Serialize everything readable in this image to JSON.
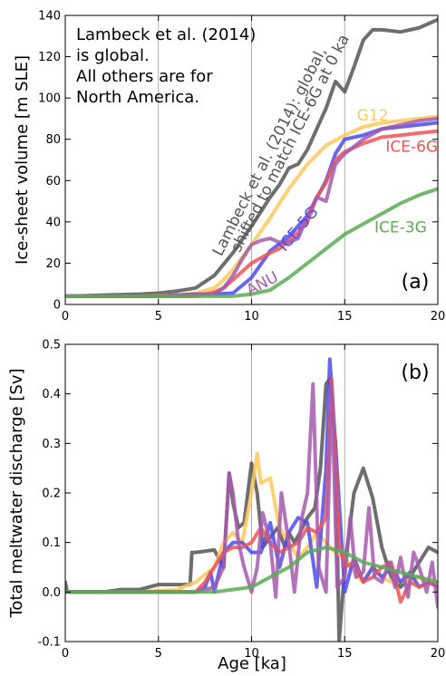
{
  "figure": {
    "x_label": "Age [ka]"
  },
  "chart_data": [
    {
      "type": "line",
      "panel_label": "(a)",
      "ylabel": "Ice-sheet volume [m SLE]",
      "xlim": [
        0,
        20
      ],
      "ylim": [
        0,
        140
      ],
      "x_ticks": [
        0,
        5,
        10,
        15,
        20
      ],
      "y_ticks": [
        0,
        20,
        40,
        60,
        80,
        100,
        120,
        140
      ],
      "grid": "vertical lines at x = 5, 10, 15",
      "note_lines": [
        "Lambeck et al. (2014)",
        "is global.",
        "All others are for",
        "North America."
      ],
      "series": [
        {
          "name": "Lambeck et al. (2014): global, shifted to match ICE-6G at 0 ka",
          "color": "#555555",
          "x": [
            0,
            2,
            4,
            5,
            6,
            7,
            8,
            9,
            10,
            10.5,
            11,
            11.5,
            12,
            12.5,
            13,
            13.5,
            14,
            14.5,
            15,
            15.5,
            16,
            16.5,
            17,
            18,
            19,
            20
          ],
          "y": [
            4,
            4.5,
            5,
            5.5,
            6.5,
            8,
            14,
            25,
            38,
            45,
            52,
            58,
            66,
            68,
            75,
            85,
            95,
            108,
            103,
            115,
            128,
            133,
            133,
            132,
            134,
            138
          ]
        },
        {
          "name": "G12",
          "color": "#fdc85a",
          "x": [
            0,
            4,
            6,
            7,
            8,
            8.5,
            9,
            10,
            11,
            12,
            13,
            14,
            15,
            16,
            17,
            18,
            19,
            20
          ],
          "y": [
            4,
            4,
            4.5,
            5.5,
            8,
            12,
            17,
            29,
            42,
            56,
            68,
            77,
            82,
            86,
            88,
            89,
            90,
            91
          ]
        },
        {
          "name": "ICE-5G",
          "color": "#4b4bef",
          "x": [
            0,
            5,
            7,
            8,
            9,
            10,
            11,
            12,
            13,
            14,
            14.5,
            15,
            16,
            17,
            18,
            19,
            20
          ],
          "y": [
            4,
            4,
            5,
            5,
            5.5,
            13,
            26,
            33,
            43,
            60,
            73,
            80,
            82,
            85,
            86,
            87,
            88
          ]
        },
        {
          "name": "ICE-6G",
          "color": "#f05555",
          "x": [
            0,
            5,
            7,
            8,
            8.5,
            9,
            10,
            11,
            11.5,
            12,
            12.5,
            13,
            13.5,
            14,
            14.5,
            15,
            16,
            17,
            18,
            19,
            20
          ],
          "y": [
            4,
            4,
            4,
            6,
            8,
            12,
            20,
            25,
            27,
            31,
            35,
            40,
            52,
            59,
            70,
            74,
            78,
            81,
            82,
            83,
            84
          ]
        },
        {
          "name": "ANU",
          "color": "#a45aae",
          "x": [
            0,
            5,
            7,
            8,
            8.5,
            9,
            9.5,
            10,
            10.5,
            11,
            11.5,
            12,
            12.5,
            13,
            13.5,
            14,
            14.5,
            15,
            16,
            17,
            18,
            19,
            20
          ],
          "y": [
            4,
            4,
            5,
            5,
            8,
            14,
            22,
            29,
            31,
            32,
            30,
            30,
            32,
            43,
            52,
            50,
            68,
            73,
            80,
            85,
            87,
            89,
            90
          ]
        },
        {
          "name": "ICE-3G",
          "color": "#5aab52",
          "x": [
            0,
            5,
            7,
            8,
            9,
            10,
            11,
            12,
            13,
            14,
            15,
            16,
            17,
            18,
            19,
            20
          ],
          "y": [
            4,
            4,
            4,
            4,
            4,
            5,
            7,
            13,
            20,
            27,
            34,
            39,
            44,
            49,
            53,
            56
          ]
        }
      ],
      "curve_labels": [
        {
          "text": "Lambeck et al. (2014): global,",
          "color": "#555555",
          "x": 11.2,
          "y": 73,
          "rotate": -63
        },
        {
          "text": "shifted to match ICE-6G at 0 ka",
          "color": "#555555",
          "x": 12.3,
          "y": 77,
          "rotate": -63
        },
        {
          "text": "G12",
          "color": "#fdc85a",
          "x": 16.5,
          "y": 89
        },
        {
          "text": "ICE-6G",
          "color": "#f05555",
          "x": 18.6,
          "y": 74
        },
        {
          "text": "ICE-5G",
          "color": "#4b4bef",
          "x": 12.7,
          "y": 35,
          "rotate": -50
        },
        {
          "text": "ICE-3G",
          "color": "#5aab52",
          "x": 18.0,
          "y": 35
        },
        {
          "text": "ANU",
          "color": "#a45aae",
          "x": 10.7,
          "y": 8,
          "rotate": -28
        }
      ]
    },
    {
      "type": "line",
      "panel_label": "(b)",
      "ylabel": "Total meltwater discharge [Sv]",
      "xlim": [
        0,
        20
      ],
      "ylim": [
        -0.1,
        0.5
      ],
      "x_ticks": [
        0,
        5,
        10,
        15,
        20
      ],
      "y_ticks": [
        -0.1,
        0.0,
        0.1,
        0.2,
        0.3,
        0.4,
        0.5
      ],
      "grid": "vertical lines at x = 5, 10, 15",
      "series": [
        {
          "name": "Lambeck et al. (2014)",
          "color": "#555555",
          "x": [
            0,
            0.1,
            0.2,
            2,
            3,
            4,
            5,
            6,
            6.7,
            6.8,
            7,
            8,
            8.5,
            8.8,
            9,
            9.3,
            9.6,
            9.8,
            10,
            10.3,
            10.6,
            11,
            11.4,
            11.8,
            12,
            12.3,
            12.6,
            13,
            13.4,
            13.7,
            14,
            14.2,
            14.5,
            14.7,
            15,
            15.5,
            16,
            16.5,
            17,
            17.5,
            18,
            18.5,
            19,
            19.5,
            20
          ],
          "y": [
            0.02,
            0.0,
            0.0,
            0.0,
            0.005,
            0.005,
            0.015,
            0.015,
            0.015,
            0.08,
            0.08,
            0.085,
            0.05,
            0.24,
            0.18,
            0.13,
            0.14,
            0.2,
            0.26,
            0.2,
            0.09,
            0.11,
            0.13,
            0.09,
            0.12,
            0.1,
            0.12,
            0.15,
            0.17,
            0.25,
            0.42,
            0.43,
            0.3,
            -0.1,
            0.05,
            0.2,
            0.25,
            0.19,
            0.09,
            0.03,
            0.01,
            0.03,
            0.06,
            0.09,
            0.08
          ]
        },
        {
          "name": "G12",
          "color": "#fdc85a",
          "x": [
            0,
            4,
            6,
            7,
            8,
            8.5,
            9,
            9.5,
            10,
            10.3,
            10.5,
            11,
            11.5,
            12,
            12.5,
            13,
            13.5,
            14,
            14.5,
            15,
            15.5,
            16,
            16.5,
            17,
            17.5,
            18,
            19,
            20
          ],
          "y": [
            0.0,
            0.0,
            0.005,
            0.02,
            0.05,
            0.1,
            0.12,
            0.1,
            0.2,
            0.28,
            0.22,
            0.23,
            0.13,
            0.1,
            0.07,
            0.09,
            0.12,
            0.1,
            0.08,
            0.07,
            0.04,
            0.02,
            0.05,
            0.03,
            0.02,
            0.02,
            0.03,
            0.01
          ]
        },
        {
          "name": "ICE-5G",
          "color": "#4b4bef",
          "x": [
            0,
            6,
            7,
            7.5,
            7.8,
            8,
            8.5,
            9,
            9.5,
            10,
            10.5,
            11,
            11.5,
            12,
            12.5,
            13,
            13.5,
            14,
            14.2,
            14.5,
            15,
            15.5,
            16,
            16.5,
            17,
            17.5,
            18,
            18.5,
            19,
            19.5,
            20
          ],
          "y": [
            0.0,
            0.0,
            0.0,
            0.01,
            0.04,
            0.0,
            0.08,
            0.1,
            0.1,
            0.08,
            0.08,
            0.14,
            0.05,
            0.12,
            0.15,
            0.14,
            0.01,
            0.25,
            0.47,
            0.3,
            0.0,
            0.07,
            0.02,
            0.05,
            0.03,
            0.05,
            0.02,
            0.04,
            0.01,
            0.02,
            0.01
          ]
        },
        {
          "name": "ICE-6G",
          "color": "#f05555",
          "x": [
            0,
            4,
            6,
            7,
            7.5,
            8,
            8.5,
            9,
            9.5,
            10,
            10.5,
            11,
            11.5,
            12,
            12.5,
            13,
            13.5,
            14,
            14.3,
            14.7,
            15,
            15.5,
            16,
            16.5,
            17,
            17.5,
            18,
            18.5,
            19,
            19.5,
            20
          ],
          "y": [
            0.0,
            0.0,
            0.0,
            0.0,
            0.02,
            0.05,
            0.08,
            0.09,
            0.09,
            0.1,
            0.13,
            0.1,
            0.08,
            0.09,
            0.1,
            0.13,
            0.12,
            0.15,
            0.43,
            0.1,
            0.05,
            0.06,
            0.02,
            0.03,
            0.05,
            0.06,
            -0.02,
            0.02,
            0.01,
            0.02,
            0.01
          ]
        },
        {
          "name": "ANU",
          "color": "#a45aae",
          "x": [
            0,
            6,
            7,
            8,
            8.5,
            8.8,
            9,
            9.3,
            9.6,
            10,
            10.3,
            10.6,
            11,
            11.3,
            11.6,
            12,
            12.3,
            12.7,
            13,
            13.3,
            13.6,
            14,
            14.3,
            14.6,
            15,
            15.3,
            15.6,
            16,
            16.3,
            16.6,
            17,
            17.4,
            17.7,
            18,
            18.4,
            18.7,
            19,
            19.4,
            19.7,
            20
          ],
          "y": [
            0.0,
            0.0,
            0.0,
            0.01,
            0.05,
            0.24,
            0.2,
            0.1,
            0.05,
            0.0,
            0.05,
            0.16,
            0.1,
            -0.01,
            0.2,
            0.1,
            0.0,
            0.15,
            0.2,
            0.42,
            0.05,
            0.0,
            0.42,
            0.01,
            0.03,
            0.15,
            0.03,
            0.04,
            0.17,
            0.03,
            0.02,
            0.06,
            0.01,
            0.07,
            -0.01,
            0.08,
            0.05,
            0.0,
            0.06,
            -0.03
          ]
        },
        {
          "name": "ICE-3G",
          "color": "#5aab52",
          "x": [
            0,
            7,
            8,
            9,
            10,
            11,
            12,
            13,
            14,
            15,
            16,
            17,
            18,
            19,
            20
          ],
          "y": [
            0.0,
            0.0,
            0.0,
            0.005,
            0.01,
            0.03,
            0.05,
            0.08,
            0.09,
            0.08,
            0.06,
            0.05,
            0.04,
            0.03,
            0.02
          ]
        }
      ]
    }
  ]
}
